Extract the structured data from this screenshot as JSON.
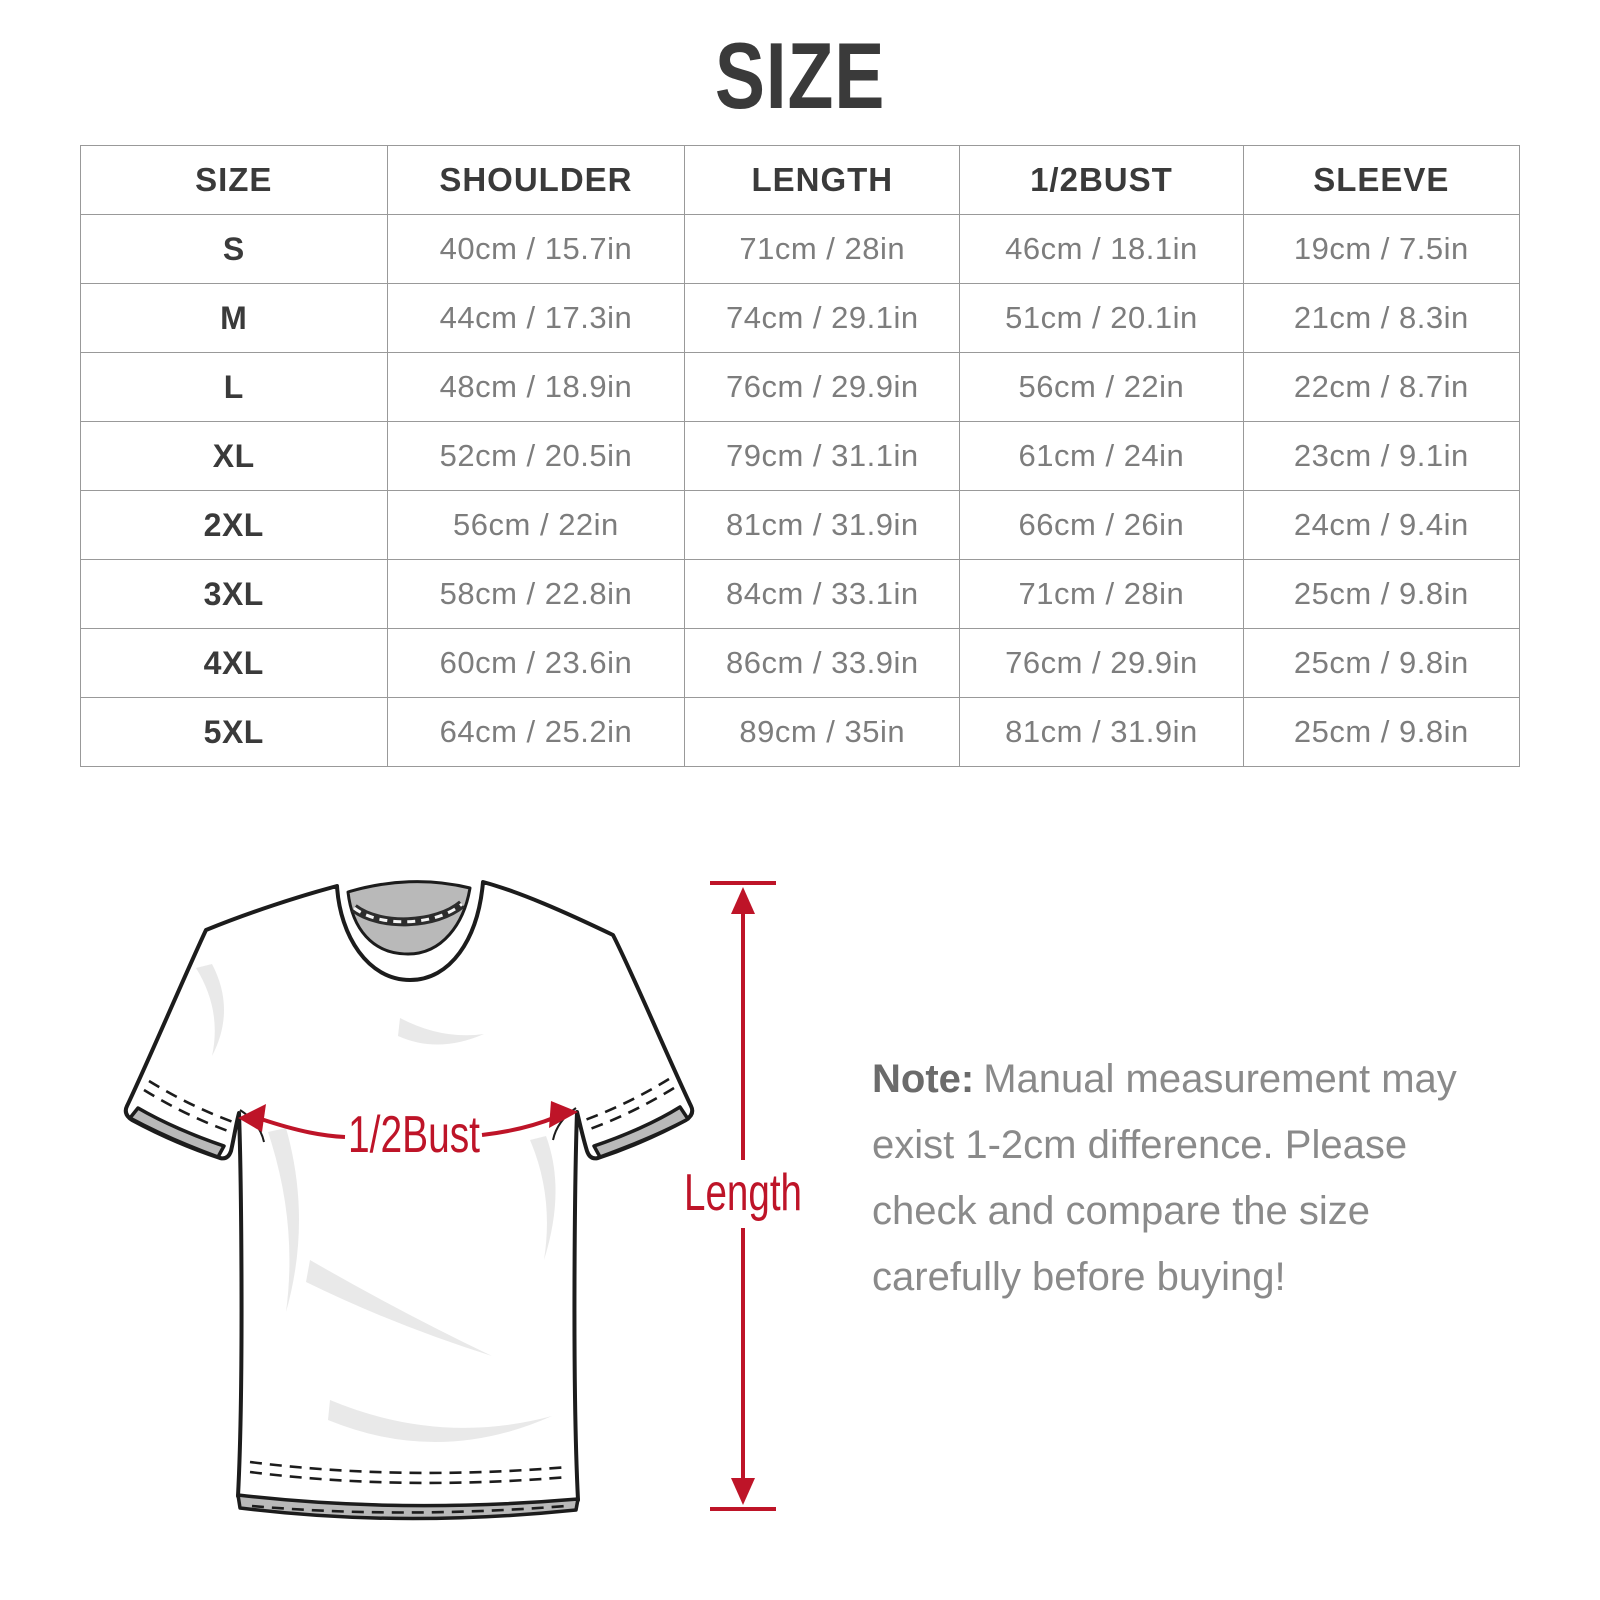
{
  "title": "SIZE",
  "table": {
    "headers": [
      "SIZE",
      "SHOULDER",
      "LENGTH",
      "1/2BUST",
      "SLEEVE"
    ],
    "rows": [
      [
        "S",
        "40cm / 15.7in",
        "71cm / 28in",
        "46cm / 18.1in",
        "19cm / 7.5in"
      ],
      [
        "M",
        "44cm / 17.3in",
        "74cm / 29.1in",
        "51cm / 20.1in",
        "21cm / 8.3in"
      ],
      [
        "L",
        "48cm / 18.9in",
        "76cm / 29.9in",
        "56cm / 22in",
        "22cm / 8.7in"
      ],
      [
        "XL",
        "52cm / 20.5in",
        "79cm / 31.1in",
        "61cm / 24in",
        "23cm / 9.1in"
      ],
      [
        "2XL",
        "56cm / 22in",
        "81cm / 31.9in",
        "66cm / 26in",
        "24cm / 9.4in"
      ],
      [
        "3XL",
        "58cm / 22.8in",
        "84cm / 33.1in",
        "71cm / 28in",
        "25cm / 9.8in"
      ],
      [
        "4XL",
        "60cm / 23.6in",
        "86cm / 33.9in",
        "76cm / 29.9in",
        "25cm / 9.8in"
      ],
      [
        "5XL",
        "64cm / 25.2in",
        "89cm / 35in",
        "81cm / 31.9in",
        "25cm / 9.8in"
      ]
    ]
  },
  "diagram": {
    "bust_label": "1/2Bust",
    "length_label": "Length"
  },
  "note": {
    "label": "Note:",
    "text": "Manual measurement may exist 1-2cm difference. Please check and compare the size carefully before buying!"
  },
  "colors": {
    "accent_red": "#BE1428",
    "heading_text": "#3a3a3a",
    "cell_text": "#7d7d7d",
    "table_border": "#999999",
    "collar_gray": "#b9b9b9",
    "fold_gray": "#e9e9e9",
    "outline_black": "#1c1c1c",
    "note_text": "#8a8a8a"
  }
}
